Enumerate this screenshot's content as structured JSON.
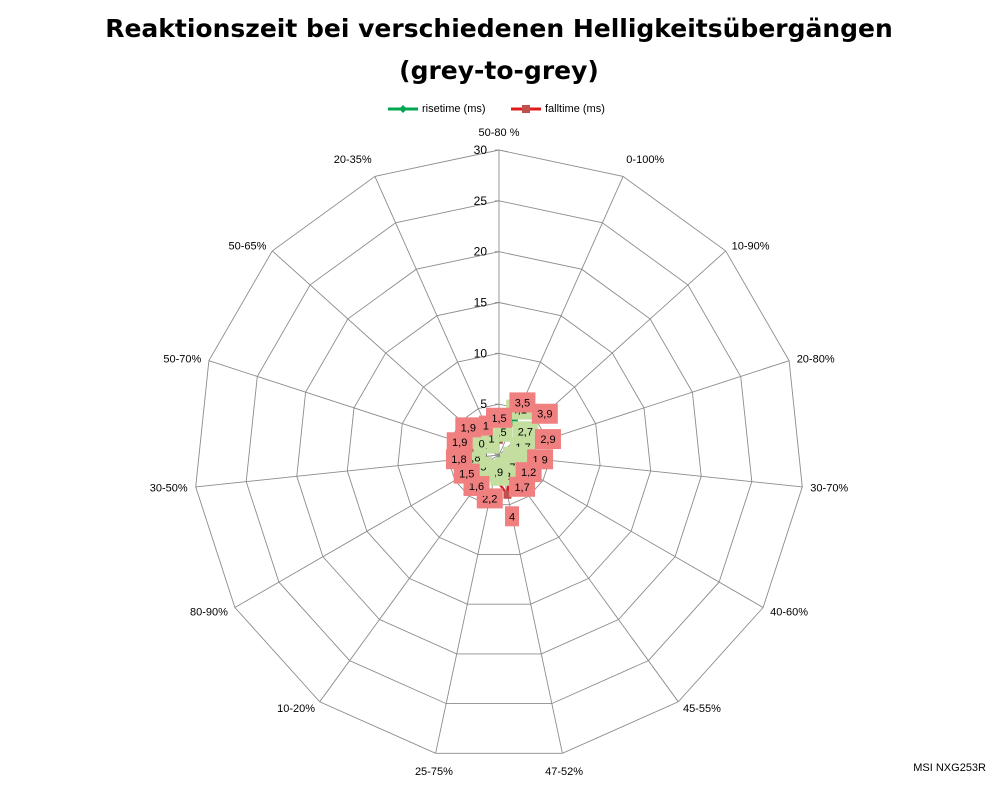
{
  "title_line1": "Reaktionszeit bei verschiedenen Helligkeitsübergängen",
  "title_line2": "(grey-to-grey)",
  "legend": [
    {
      "label": "risetime (ms)",
      "color": "#00a651",
      "marker": "diamond"
    },
    {
      "label": "falltime (ms)",
      "color": "#e01b1b",
      "marker": "square"
    }
  ],
  "watermark": "MSI NXG253R",
  "chart_data": {
    "type": "radar",
    "categories": [
      "50-80 %",
      "0-100%",
      "10-90%",
      "20-80%",
      "30-70%",
      "40-60%",
      "45-55%",
      "47-52%",
      "25-75%",
      "10-20%",
      "80-90%",
      "30-50%",
      "50-70%",
      "50-65%",
      "20-35%"
    ],
    "r_ticks": [
      0,
      5,
      10,
      15,
      20,
      25,
      30
    ],
    "r_range": [
      0,
      30
    ],
    "gridlines": true,
    "legend_position": "top",
    "series": [
      {
        "name": "risetime (ms)",
        "color": "#00a651",
        "label_bg": "#c4dea0",
        "values": [
          1.5,
          4.1,
          2.7,
          1.7,
          0.9,
          0.8,
          0.7,
          1.3,
          0.9,
          1.0,
          1.5,
          1.8,
          1.9,
          0.9,
          1.0
        ]
      },
      {
        "name": "falltime (ms)",
        "color": "#e01b1b",
        "label_bg": "#f08080",
        "values": [
          1.5,
          3.5,
          3.9,
          2.9,
          1.9,
          1.2,
          1.7,
          4.0,
          2.2,
          1.6,
          1.5,
          1.8,
          1.9,
          1.9,
          1.0
        ]
      }
    ]
  }
}
